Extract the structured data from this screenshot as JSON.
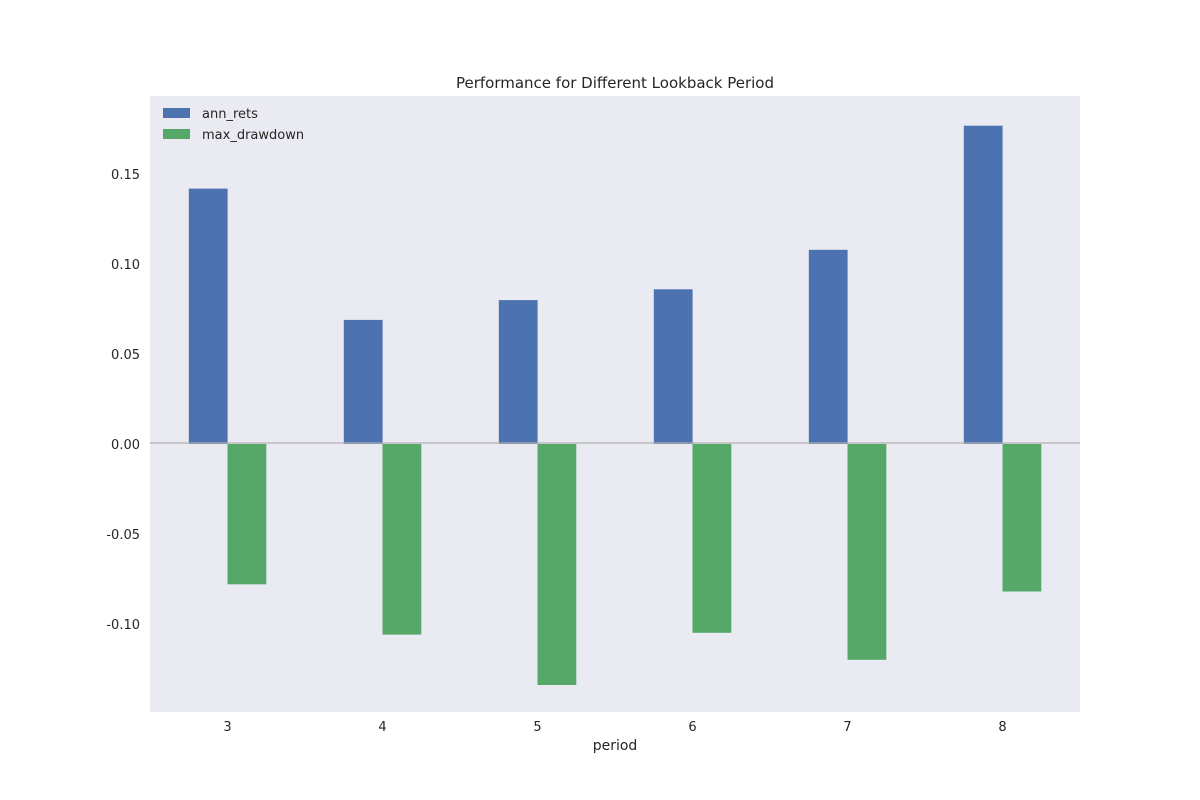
{
  "chart_data": {
    "type": "bar",
    "title": "Performance for Different Lookback Period",
    "xlabel": "period",
    "ylabel": "",
    "categories": [
      "3",
      "4",
      "5",
      "6",
      "7",
      "8"
    ],
    "series": [
      {
        "name": "ann_rets",
        "values": [
          0.142,
          0.069,
          0.08,
          0.086,
          0.108,
          0.177
        ]
      },
      {
        "name": "max_drawdown",
        "values": [
          -0.078,
          -0.106,
          -0.134,
          -0.105,
          -0.12,
          -0.082
        ]
      }
    ],
    "ylim": [
      -0.149,
      0.1935
    ],
    "yticks": [
      "0.15",
      "0.10",
      "0.05",
      "0.00",
      "-0.05",
      "-0.10"
    ],
    "grid": false,
    "legend_position": "top-left",
    "colors": {
      "ann_rets": "#4c72b0",
      "max_drawdown": "#55a868",
      "plot_background": "#eaeaf2",
      "zero_line": "#b0b0b0"
    }
  }
}
